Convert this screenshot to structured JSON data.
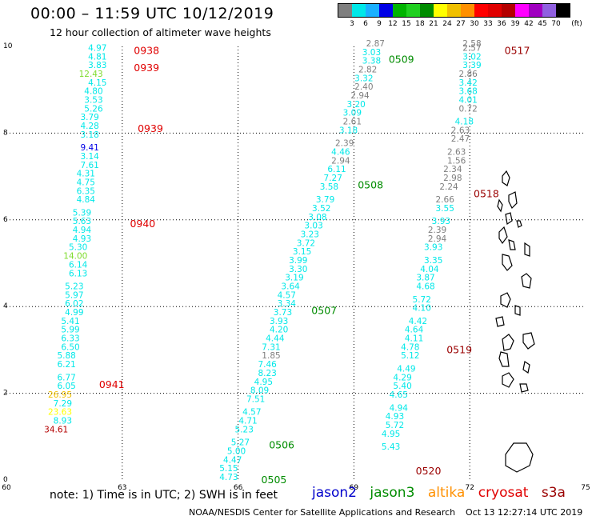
{
  "header": {
    "title": "00:00 – 11:59 UTC 10/12/2019",
    "subtitle": "12 hour collection of altimeter wave heights"
  },
  "colorbar": {
    "unit": "(ft)",
    "colors": [
      "#7f7f7f",
      "#00e8e8",
      "#1ab0ff",
      "#0000e6",
      "#00b400",
      "#20d020",
      "#008c00",
      "#ffff00",
      "#f0c000",
      "#ff9000",
      "#ff0000",
      "#e00000",
      "#b40000",
      "#ff00ff",
      "#a000c0",
      "#9060e0",
      "#000000"
    ],
    "labels": [
      "3",
      "6",
      "9",
      "12",
      "15",
      "18",
      "21",
      "24",
      "27",
      "30",
      "33",
      "36",
      "39",
      "42",
      "45",
      "70"
    ]
  },
  "axes": {
    "x_labels": [
      "60",
      "63",
      "66",
      "69",
      "72",
      "75"
    ],
    "y_labels": [
      "0",
      "2",
      "4",
      "6",
      "8",
      "10"
    ]
  },
  "satellites": {
    "jason2": {
      "label": "jason2",
      "color": "#0000cc"
    },
    "jason3": {
      "label": "jason3",
      "color": "#008c00"
    },
    "altika": {
      "label": "altika",
      "color": "#ff9000"
    },
    "cryosat": {
      "label": "cryosat",
      "color": "#e00000"
    },
    "s3a": {
      "label": "s3a",
      "color": "#9a0000"
    }
  },
  "passes": [
    {
      "label": "0938",
      "sat": "cryosat",
      "lon": 63.3,
      "lat": 9.9
    },
    {
      "label": "0939",
      "sat": "cryosat",
      "lon": 63.3,
      "lat": 9.5
    },
    {
      "label": "0939",
      "sat": "cryosat",
      "lon": 63.4,
      "lat": 8.1
    },
    {
      "label": "0940",
      "sat": "cryosat",
      "lon": 63.2,
      "lat": 5.9
    },
    {
      "label": "0941",
      "sat": "cryosat",
      "lon": 62.4,
      "lat": 2.2
    },
    {
      "label": "0509",
      "sat": "jason3",
      "lon": 69.9,
      "lat": 9.7
    },
    {
      "label": "0508",
      "sat": "jason3",
      "lon": 69.1,
      "lat": 6.8
    },
    {
      "label": "0507",
      "sat": "jason3",
      "lon": 67.9,
      "lat": 3.9
    },
    {
      "label": "0506",
      "sat": "jason3",
      "lon": 66.8,
      "lat": 0.8
    },
    {
      "label": "0505",
      "sat": "jason3",
      "lon": 66.6,
      "lat": 0.0
    },
    {
      "label": "0517",
      "sat": "s3a",
      "lon": 72.9,
      "lat": 9.9
    },
    {
      "label": "0518",
      "sat": "s3a",
      "lon": 72.1,
      "lat": 6.6
    },
    {
      "label": "0519",
      "sat": "s3a",
      "lon": 71.4,
      "lat": 3.0
    },
    {
      "label": "0520",
      "sat": "s3a",
      "lon": 70.6,
      "lat": 0.2
    }
  ],
  "tracks": [
    {
      "name": "cryosat pass 0938–0941",
      "points": [
        {
          "v": "4.97",
          "c": "#00e8e8",
          "lon": 62.6,
          "lat": 9.9
        },
        {
          "v": "4.81",
          "c": "#00e8e8",
          "lon": 62.6,
          "lat": 9.7
        },
        {
          "v": "3.83",
          "c": "#00e8e8",
          "lon": 62.6,
          "lat": 9.5
        },
        {
          "v": "12.43",
          "c": "#7fdc30",
          "lon": 62.5,
          "lat": 9.3
        },
        {
          "v": "4.15",
          "c": "#00e8e8",
          "lon": 62.6,
          "lat": 9.1
        },
        {
          "v": "4.80",
          "c": "#00e8e8",
          "lon": 62.5,
          "lat": 8.9
        },
        {
          "v": "3.53",
          "c": "#00e8e8",
          "lon": 62.5,
          "lat": 8.7
        },
        {
          "v": "5.26",
          "c": "#00e8e8",
          "lon": 62.5,
          "lat": 8.5
        },
        {
          "v": "3.79",
          "c": "#00e8e8",
          "lon": 62.4,
          "lat": 8.3
        },
        {
          "v": "4.28",
          "c": "#00e8e8",
          "lon": 62.4,
          "lat": 8.1
        },
        {
          "v": "3.18",
          "c": "#00e8e8",
          "lon": 62.4,
          "lat": 7.9
        },
        {
          "v": "9.41",
          "c": "#0000e6",
          "lon": 62.4,
          "lat": 7.6
        },
        {
          "v": "3.14",
          "c": "#00e8e8",
          "lon": 62.4,
          "lat": 7.4
        },
        {
          "v": "7.61",
          "c": "#00e8e8",
          "lon": 62.4,
          "lat": 7.2
        },
        {
          "v": "4.31",
          "c": "#00e8e8",
          "lon": 62.3,
          "lat": 7.0
        },
        {
          "v": "4.75",
          "c": "#00e8e8",
          "lon": 62.3,
          "lat": 6.8
        },
        {
          "v": "6.35",
          "c": "#00e8e8",
          "lon": 62.3,
          "lat": 6.6
        },
        {
          "v": "4.84",
          "c": "#00e8e8",
          "lon": 62.3,
          "lat": 6.4
        },
        {
          "v": "5.39",
          "c": "#00e8e8",
          "lon": 62.2,
          "lat": 6.1
        },
        {
          "v": "5.63",
          "c": "#00e8e8",
          "lon": 62.2,
          "lat": 5.9
        },
        {
          "v": "4.94",
          "c": "#00e8e8",
          "lon": 62.2,
          "lat": 5.7
        },
        {
          "v": "4.93",
          "c": "#00e8e8",
          "lon": 62.2,
          "lat": 5.5
        },
        {
          "v": "5.30",
          "c": "#00e8e8",
          "lon": 62.1,
          "lat": 5.3
        },
        {
          "v": "14.00",
          "c": "#7fdc30",
          "lon": 62.1,
          "lat": 5.1
        },
        {
          "v": "6.14",
          "c": "#00e8e8",
          "lon": 62.1,
          "lat": 4.9
        },
        {
          "v": "6.13",
          "c": "#00e8e8",
          "lon": 62.1,
          "lat": 4.7
        },
        {
          "v": "5.23",
          "c": "#00e8e8",
          "lon": 62.0,
          "lat": 4.4
        },
        {
          "v": "5.97",
          "c": "#00e8e8",
          "lon": 62.0,
          "lat": 4.2
        },
        {
          "v": "6.02",
          "c": "#00e8e8",
          "lon": 62.0,
          "lat": 4.0
        },
        {
          "v": "4.99",
          "c": "#00e8e8",
          "lon": 62.0,
          "lat": 3.8
        },
        {
          "v": "5.41",
          "c": "#00e8e8",
          "lon": 61.9,
          "lat": 3.6
        },
        {
          "v": "5.99",
          "c": "#00e8e8",
          "lon": 61.9,
          "lat": 3.4
        },
        {
          "v": "6.33",
          "c": "#00e8e8",
          "lon": 61.9,
          "lat": 3.2
        },
        {
          "v": "6.50",
          "c": "#00e8e8",
          "lon": 61.9,
          "lat": 3.0
        },
        {
          "v": "5.88",
          "c": "#00e8e8",
          "lon": 61.8,
          "lat": 2.8
        },
        {
          "v": "6.21",
          "c": "#00e8e8",
          "lon": 61.8,
          "lat": 2.6
        },
        {
          "v": "6.77",
          "c": "#00e8e8",
          "lon": 61.8,
          "lat": 2.3
        },
        {
          "v": "6.05",
          "c": "#00e8e8",
          "lon": 61.8,
          "lat": 2.1
        },
        {
          "v": "26.95",
          "c": "#f0c000",
          "lon": 61.7,
          "lat": 1.9
        },
        {
          "v": "7.29",
          "c": "#00e8e8",
          "lon": 61.7,
          "lat": 1.7
        },
        {
          "v": "23.63",
          "c": "#ffff00",
          "lon": 61.7,
          "lat": 1.5
        },
        {
          "v": "8.93",
          "c": "#00e8e8",
          "lon": 61.7,
          "lat": 1.3
        },
        {
          "v": "34.61",
          "c": "#b40000",
          "lon": 61.6,
          "lat": 1.1
        }
      ]
    },
    {
      "name": "jason3 pass 0505–0509",
      "points": [
        {
          "v": "2.87",
          "c": "#7f7f7f",
          "lon": 69.8,
          "lat": 10.0
        },
        {
          "v": "3.03",
          "c": "#00e8e8",
          "lon": 69.7,
          "lat": 9.8
        },
        {
          "v": "3.38",
          "c": "#00e8e8",
          "lon": 69.7,
          "lat": 9.6
        },
        {
          "v": "2.82",
          "c": "#7f7f7f",
          "lon": 69.6,
          "lat": 9.4
        },
        {
          "v": "3.32",
          "c": "#00e8e8",
          "lon": 69.5,
          "lat": 9.2
        },
        {
          "v": "2.40",
          "c": "#7f7f7f",
          "lon": 69.5,
          "lat": 9.0
        },
        {
          "v": "2.94",
          "c": "#7f7f7f",
          "lon": 69.4,
          "lat": 8.8
        },
        {
          "v": "3.20",
          "c": "#00e8e8",
          "lon": 69.3,
          "lat": 8.6
        },
        {
          "v": "3.09",
          "c": "#00e8e8",
          "lon": 69.2,
          "lat": 8.4
        },
        {
          "v": "2.61",
          "c": "#7f7f7f",
          "lon": 69.2,
          "lat": 8.2
        },
        {
          "v": "3.18",
          "c": "#00e8e8",
          "lon": 69.1,
          "lat": 8.0
        },
        {
          "v": "2.39",
          "c": "#7f7f7f",
          "lon": 69.0,
          "lat": 7.7
        },
        {
          "v": "4.46",
          "c": "#00e8e8",
          "lon": 68.9,
          "lat": 7.5
        },
        {
          "v": "2.94",
          "c": "#7f7f7f",
          "lon": 68.9,
          "lat": 7.3
        },
        {
          "v": "6.11",
          "c": "#00e8e8",
          "lon": 68.8,
          "lat": 7.1
        },
        {
          "v": "7.27",
          "c": "#00e8e8",
          "lon": 68.7,
          "lat": 6.9
        },
        {
          "v": "3.58",
          "c": "#00e8e8",
          "lon": 68.6,
          "lat": 6.7
        },
        {
          "v": "3.79",
          "c": "#00e8e8",
          "lon": 68.5,
          "lat": 6.4
        },
        {
          "v": "3.52",
          "c": "#00e8e8",
          "lon": 68.4,
          "lat": 6.2
        },
        {
          "v": "3.08",
          "c": "#00e8e8",
          "lon": 68.3,
          "lat": 6.0
        },
        {
          "v": "3.03",
          "c": "#00e8e8",
          "lon": 68.2,
          "lat": 5.8
        },
        {
          "v": "3.23",
          "c": "#00e8e8",
          "lon": 68.1,
          "lat": 5.6
        },
        {
          "v": "3.72",
          "c": "#00e8e8",
          "lon": 68.0,
          "lat": 5.4
        },
        {
          "v": "3.15",
          "c": "#00e8e8",
          "lon": 67.9,
          "lat": 5.2
        },
        {
          "v": "3.99",
          "c": "#00e8e8",
          "lon": 67.8,
          "lat": 5.0
        },
        {
          "v": "3.30",
          "c": "#00e8e8",
          "lon": 67.8,
          "lat": 4.8
        },
        {
          "v": "3.19",
          "c": "#00e8e8",
          "lon": 67.7,
          "lat": 4.6
        },
        {
          "v": "3.64",
          "c": "#00e8e8",
          "lon": 67.6,
          "lat": 4.4
        },
        {
          "v": "4.57",
          "c": "#00e8e8",
          "lon": 67.5,
          "lat": 4.2
        },
        {
          "v": "3.34",
          "c": "#00e8e8",
          "lon": 67.5,
          "lat": 4.0
        },
        {
          "v": "3.73",
          "c": "#00e8e8",
          "lon": 67.4,
          "lat": 3.8
        },
        {
          "v": "3.93",
          "c": "#00e8e8",
          "lon": 67.3,
          "lat": 3.6
        },
        {
          "v": "4.20",
          "c": "#00e8e8",
          "lon": 67.3,
          "lat": 3.4
        },
        {
          "v": "4.44",
          "c": "#00e8e8",
          "lon": 67.2,
          "lat": 3.2
        },
        {
          "v": "7.31",
          "c": "#00e8e8",
          "lon": 67.1,
          "lat": 3.0
        },
        {
          "v": "1.85",
          "c": "#7f7f7f",
          "lon": 67.1,
          "lat": 2.8
        },
        {
          "v": "7.46",
          "c": "#00e8e8",
          "lon": 67.0,
          "lat": 2.6
        },
        {
          "v": "8.23",
          "c": "#00e8e8",
          "lon": 67.0,
          "lat": 2.4
        },
        {
          "v": "4.95",
          "c": "#00e8e8",
          "lon": 66.9,
          "lat": 2.2
        },
        {
          "v": "8.09",
          "c": "#00e8e8",
          "lon": 66.8,
          "lat": 2.0
        },
        {
          "v": "7.51",
          "c": "#00e8e8",
          "lon": 66.7,
          "lat": 1.8
        },
        {
          "v": "4.57",
          "c": "#00e8e8",
          "lon": 66.6,
          "lat": 1.5
        },
        {
          "v": "4.71",
          "c": "#00e8e8",
          "lon": 66.5,
          "lat": 1.3
        },
        {
          "v": "5.23",
          "c": "#00e8e8",
          "lon": 66.4,
          "lat": 1.1
        },
        {
          "v": "5.27",
          "c": "#00e8e8",
          "lon": 66.3,
          "lat": 0.8
        },
        {
          "v": "5.00",
          "c": "#00e8e8",
          "lon": 66.2,
          "lat": 0.6
        },
        {
          "v": "4.47",
          "c": "#00e8e8",
          "lon": 66.1,
          "lat": 0.4
        },
        {
          "v": "5.15",
          "c": "#00e8e8",
          "lon": 66.0,
          "lat": 0.2
        },
        {
          "v": "4.73",
          "c": "#00e8e8",
          "lon": 66.0,
          "lat": 0.0
        }
      ]
    },
    {
      "name": "s3a pass 0517–0520",
      "points": [
        {
          "v": "2.58",
          "c": "#7f7f7f",
          "lon": 72.3,
          "lat": 10.0
        },
        {
          "v": "2.57",
          "c": "#7f7f7f",
          "lon": 72.3,
          "lat": 9.9
        },
        {
          "v": "3.02",
          "c": "#00e8e8",
          "lon": 72.3,
          "lat": 9.7
        },
        {
          "v": "3.39",
          "c": "#00e8e8",
          "lon": 72.3,
          "lat": 9.5
        },
        {
          "v": "2.86",
          "c": "#7f7f7f",
          "lon": 72.2,
          "lat": 9.3
        },
        {
          "v": "3.42",
          "c": "#00e8e8",
          "lon": 72.2,
          "lat": 9.1
        },
        {
          "v": "3.68",
          "c": "#00e8e8",
          "lon": 72.2,
          "lat": 8.9
        },
        {
          "v": "4.01",
          "c": "#00e8e8",
          "lon": 72.2,
          "lat": 8.7
        },
        {
          "v": "0.72",
          "c": "#7f7f7f",
          "lon": 72.2,
          "lat": 8.5
        },
        {
          "v": "4.18",
          "c": "#00e8e8",
          "lon": 72.1,
          "lat": 8.2
        },
        {
          "v": "2.63",
          "c": "#7f7f7f",
          "lon": 72.0,
          "lat": 8.0
        },
        {
          "v": "2.47",
          "c": "#7f7f7f",
          "lon": 72.0,
          "lat": 7.8
        },
        {
          "v": "2.63",
          "c": "#7f7f7f",
          "lon": 71.9,
          "lat": 7.5
        },
        {
          "v": "1.56",
          "c": "#7f7f7f",
          "lon": 71.9,
          "lat": 7.3
        },
        {
          "v": "2.34",
          "c": "#7f7f7f",
          "lon": 71.8,
          "lat": 7.1
        },
        {
          "v": "2.98",
          "c": "#7f7f7f",
          "lon": 71.8,
          "lat": 6.9
        },
        {
          "v": "2.24",
          "c": "#7f7f7f",
          "lon": 71.7,
          "lat": 6.7
        },
        {
          "v": "2.66",
          "c": "#7f7f7f",
          "lon": 71.6,
          "lat": 6.4
        },
        {
          "v": "3.55",
          "c": "#00e8e8",
          "lon": 71.6,
          "lat": 6.2
        },
        {
          "v": "3.93",
          "c": "#00e8e8",
          "lon": 71.5,
          "lat": 5.9
        },
        {
          "v": "2.39",
          "c": "#7f7f7f",
          "lon": 71.4,
          "lat": 5.7
        },
        {
          "v": "2.94",
          "c": "#7f7f7f",
          "lon": 71.4,
          "lat": 5.5
        },
        {
          "v": "3.93",
          "c": "#00e8e8",
          "lon": 71.3,
          "lat": 5.3
        },
        {
          "v": "3.35",
          "c": "#00e8e8",
          "lon": 71.3,
          "lat": 5.0
        },
        {
          "v": "4.04",
          "c": "#00e8e8",
          "lon": 71.2,
          "lat": 4.8
        },
        {
          "v": "3.87",
          "c": "#00e8e8",
          "lon": 71.1,
          "lat": 4.6
        },
        {
          "v": "4.68",
          "c": "#00e8e8",
          "lon": 71.1,
          "lat": 4.4
        },
        {
          "v": "5.72",
          "c": "#00e8e8",
          "lon": 71.0,
          "lat": 4.1
        },
        {
          "v": "4.10",
          "c": "#00e8e8",
          "lon": 71.0,
          "lat": 3.9
        },
        {
          "v": "4.42",
          "c": "#00e8e8",
          "lon": 70.9,
          "lat": 3.6
        },
        {
          "v": "4.64",
          "c": "#00e8e8",
          "lon": 70.8,
          "lat": 3.4
        },
        {
          "v": "4.11",
          "c": "#00e8e8",
          "lon": 70.8,
          "lat": 3.2
        },
        {
          "v": "4.78",
          "c": "#00e8e8",
          "lon": 70.7,
          "lat": 3.0
        },
        {
          "v": "5.12",
          "c": "#00e8e8",
          "lon": 70.7,
          "lat": 2.8
        },
        {
          "v": "4.49",
          "c": "#00e8e8",
          "lon": 70.6,
          "lat": 2.5
        },
        {
          "v": "4.29",
          "c": "#00e8e8",
          "lon": 70.5,
          "lat": 2.3
        },
        {
          "v": "5.40",
          "c": "#00e8e8",
          "lon": 70.5,
          "lat": 2.1
        },
        {
          "v": "4.65",
          "c": "#00e8e8",
          "lon": 70.4,
          "lat": 1.9
        },
        {
          "v": "4.94",
          "c": "#00e8e8",
          "lon": 70.4,
          "lat": 1.6
        },
        {
          "v": "4.93",
          "c": "#00e8e8",
          "lon": 70.3,
          "lat": 1.4
        },
        {
          "v": "5.72",
          "c": "#00e8e8",
          "lon": 70.3,
          "lat": 1.2
        },
        {
          "v": "4.95",
          "c": "#00e8e8",
          "lon": 70.2,
          "lat": 1.0
        },
        {
          "v": "5.43",
          "c": "#00e8e8",
          "lon": 70.2,
          "lat": 0.7
        }
      ]
    }
  ],
  "footer": {
    "note": "note: 1) Time is in UTC; 2) SWH is in feet",
    "credit": "NOAA/NESDIS Center for Satellite Applications and Research",
    "timestamp": "Oct 13 12:27:14 UTC 2019"
  }
}
